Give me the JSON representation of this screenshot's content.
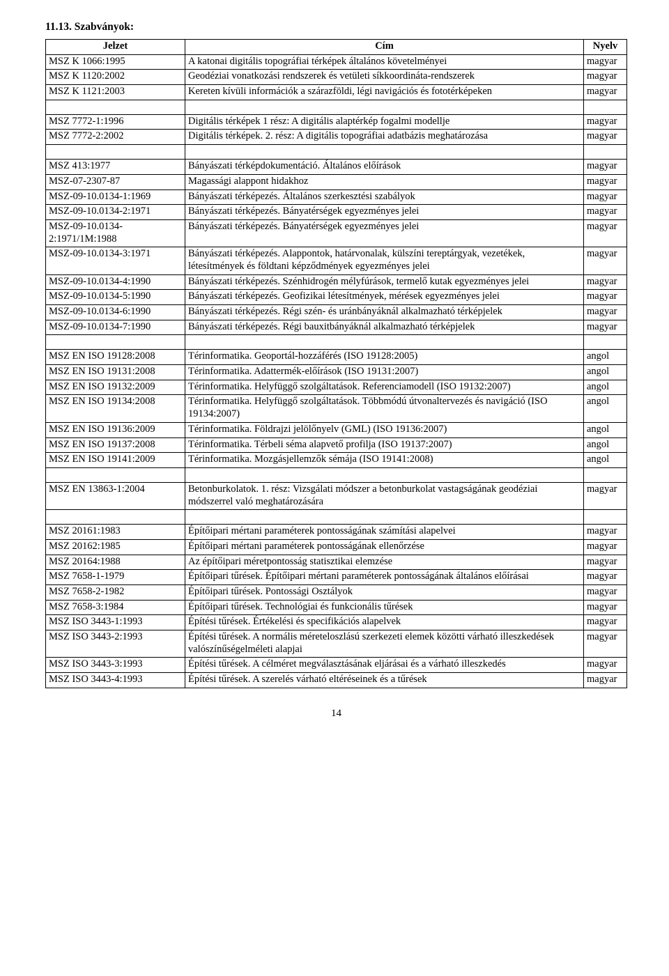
{
  "section_heading": "11.13. Szabványok:",
  "headers": {
    "jelzet": "Jelzet",
    "cim": "Cím",
    "nyelv": "Nyelv"
  },
  "page_number": "14",
  "groups": [
    {
      "rows": [
        {
          "jelzet": "MSZ K 1066:1995",
          "cim": "A katonai digitális topográfiai térképek általános követelményei",
          "nyelv": "magyar"
        },
        {
          "jelzet": "MSZ K 1120:2002",
          "cim": "Geodéziai vonatkozási rendszerek és vetületi síkkoordináta-rendszerek",
          "nyelv": "magyar"
        },
        {
          "jelzet": "MSZ K 1121:2003",
          "cim": "Kereten kívüli információk a szárazföldi, légi navigációs és fototérképeken",
          "nyelv": "magyar"
        }
      ]
    },
    {
      "rows": [
        {
          "jelzet": "MSZ 7772-1:1996",
          "cim": "Digitális térképek 1 rész: A digitális alaptérkép fogalmi modellje",
          "nyelv": "magyar"
        },
        {
          "jelzet": "MSZ 7772-2:2002",
          "cim": "Digitális térképek. 2. rész: A digitális topográfiai adatbázis meghatározása",
          "nyelv": "magyar"
        }
      ]
    },
    {
      "rows": [
        {
          "jelzet": "MSZ 413:1977",
          "cim": "Bányászati térképdokumentáció. Általános előírások",
          "nyelv": "magyar"
        },
        {
          "jelzet": "MSZ-07-2307-87",
          "cim": "Magassági alappont hidakhoz",
          "nyelv": "magyar"
        },
        {
          "jelzet": "MSZ-09-10.0134-1:1969",
          "cim": "Bányászati térképezés. Általános szerkesztési szabályok",
          "nyelv": "magyar"
        },
        {
          "jelzet": "MSZ-09-10.0134-2:1971",
          "cim": "Bányászati térképezés. Bányatérségek egyezményes jelei",
          "nyelv": "magyar"
        },
        {
          "jelzet": "MSZ-09-10.0134-2:1971/1M:1988",
          "cim": "Bányászati térképezés. Bányatérségek egyezményes jelei",
          "nyelv": "magyar"
        },
        {
          "jelzet": "MSZ-09-10.0134-3:1971",
          "cim": "Bányászati térképezés. Alappontok, határvonalak, külszíni tereptárgyak, vezetékek, létesítmények és földtani képződmények egyezményes jelei",
          "nyelv": "magyar"
        },
        {
          "jelzet": "MSZ-09-10.0134-4:1990",
          "cim": "Bányászati térképezés. Szénhidrogén mélyfúrások, termelő kutak egyezményes jelei",
          "nyelv": "magyar"
        },
        {
          "jelzet": "MSZ-09-10.0134-5:1990",
          "cim": "Bányászati térképezés. Geofizikai létesítmények, mérések egyezményes jelei",
          "nyelv": "magyar"
        },
        {
          "jelzet": "MSZ-09-10.0134-6:1990",
          "cim": "Bányászati térképezés. Régi szén- és uránbányáknál alkalmazható térképjelek",
          "nyelv": "magyar"
        },
        {
          "jelzet": "MSZ-09-10.0134-7:1990",
          "cim": "Bányászati térképezés. Régi bauxitbányáknál alkalmazható térképjelek",
          "nyelv": "magyar"
        }
      ]
    },
    {
      "rows": [
        {
          "jelzet": "MSZ EN ISO 19128:2008",
          "cim": "Térinformatika. Geoportál-hozzáférés (ISO 19128:2005)",
          "nyelv": "angol"
        },
        {
          "jelzet": "MSZ EN ISO 19131:2008",
          "cim": "Térinformatika. Adattermék-előírások (ISO 19131:2007)",
          "nyelv": "angol"
        },
        {
          "jelzet": "MSZ EN ISO 19132:2009",
          "cim": "Térinformatika. Helyfüggő szolgáltatások. Referenciamodell (ISO 19132:2007)",
          "nyelv": "angol"
        },
        {
          "jelzet": "MSZ EN ISO 19134:2008",
          "cim": "Térinformatika. Helyfüggő szolgáltatások. Többmódú útvonaltervezés és navigáció (ISO 19134:2007)",
          "nyelv": "angol"
        },
        {
          "jelzet": "MSZ EN ISO 19136:2009",
          "cim": "Térinformatika. Földrajzi jelölőnyelv (GML) (ISO 19136:2007)",
          "nyelv": "angol"
        },
        {
          "jelzet": "MSZ EN ISO 19137:2008",
          "cim": "Térinformatika. Térbeli séma alapvető profilja (ISO 19137:2007)",
          "nyelv": "angol"
        },
        {
          "jelzet": "MSZ EN ISO 19141:2009",
          "cim": "Térinformatika. Mozgásjellemzők sémája (ISO 19141:2008)",
          "nyelv": "angol"
        }
      ]
    },
    {
      "rows": [
        {
          "jelzet": "MSZ EN 13863-1:2004",
          "cim": "Betonburkolatok. 1. rész: Vizsgálati módszer a betonburkolat vastagságának geodéziai módszerrel való meghatározására",
          "nyelv": "magyar"
        }
      ]
    },
    {
      "rows": [
        {
          "jelzet": "MSZ 20161:1983",
          "cim": "Építőipari mértani paraméterek pontosságának számítási alapelvei",
          "nyelv": "magyar"
        },
        {
          "jelzet": "MSZ 20162:1985",
          "cim": "Építőipari mértani paraméterek pontosságának ellenőrzése",
          "nyelv": "magyar"
        },
        {
          "jelzet": "MSZ 20164:1988",
          "cim": "Az építőipari méretpontosság statisztikai elemzése",
          "nyelv": "magyar"
        },
        {
          "jelzet": "MSZ 7658-1-1979",
          "cim": "Építőipari tűrések. Építőipari mértani paraméterek pontosságának általános előírásai",
          "nyelv": "magyar"
        },
        {
          "jelzet": "MSZ 7658-2-1982",
          "cim": "Építőipari tűrések. Pontossági Osztályok",
          "nyelv": "magyar"
        },
        {
          "jelzet": "MSZ 7658-3:1984",
          "cim": "Építőipari tűrések. Technológiai és funkcionális tűrések",
          "nyelv": "magyar"
        },
        {
          "jelzet": "MSZ ISO 3443-1:1993",
          "cim": "Építési tűrések. Értékelési és specifikációs alapelvek",
          "nyelv": "magyar"
        },
        {
          "jelzet": "MSZ ISO 3443-2:1993",
          "cim": "Építési tűrések. A normális méreteloszlású szerkezeti elemek közötti várható illeszkedések valószínűségelméleti alapjai",
          "nyelv": "magyar"
        },
        {
          "jelzet": "MSZ ISO 3443-3:1993",
          "cim": "Építési tűrések. A célméret megválasztásának eljárásai és a várható illeszkedés",
          "nyelv": "magyar"
        },
        {
          "jelzet": "MSZ ISO 3443-4:1993",
          "cim": "Építési tűrések. A szerelés várható eltéréseinek és a tűrések",
          "nyelv": "magyar"
        }
      ]
    }
  ]
}
